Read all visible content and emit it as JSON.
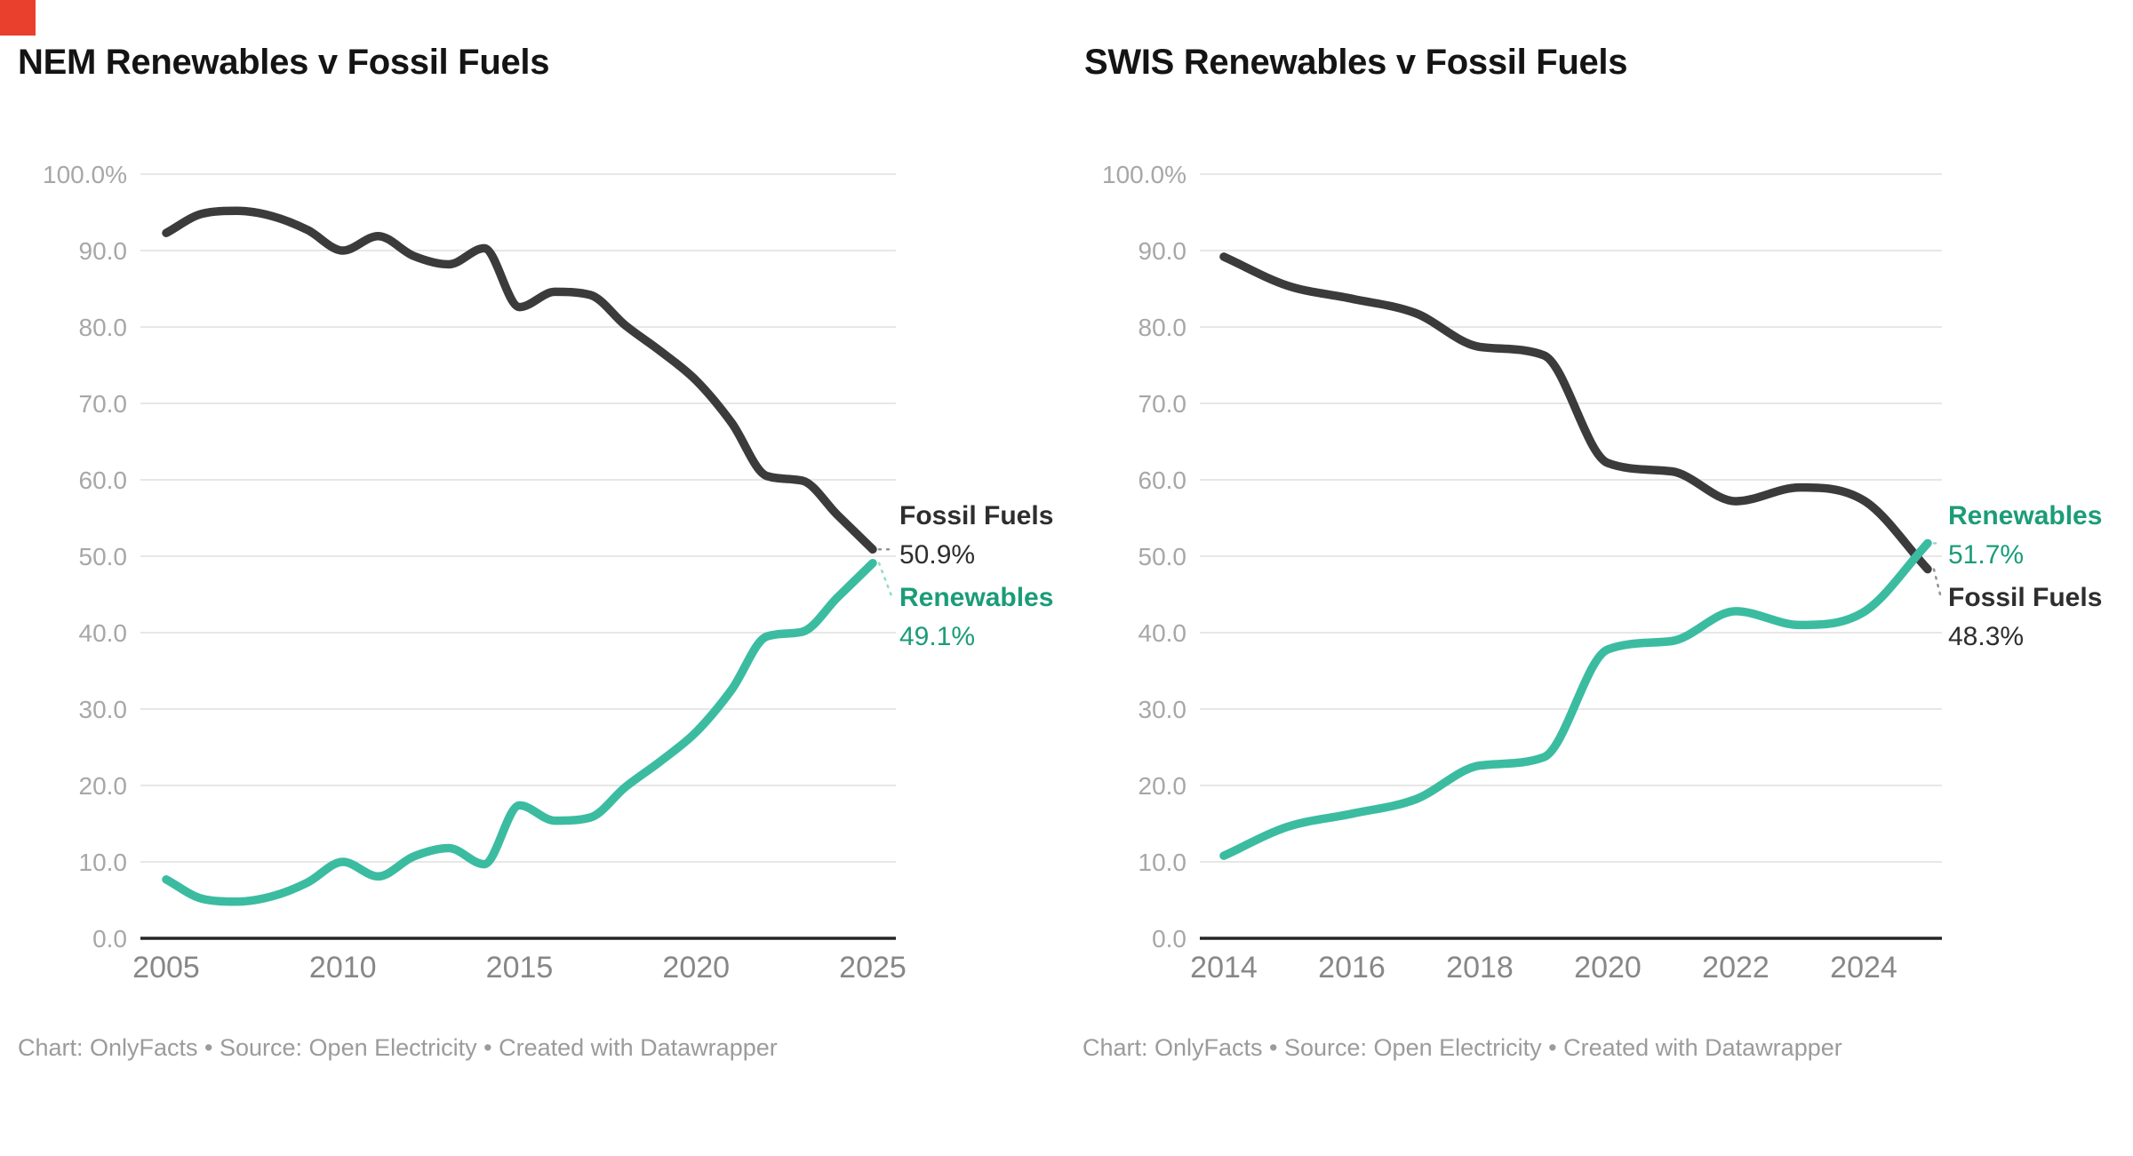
{
  "page": {
    "background": "#ffffff",
    "marker_color": "#e8402d"
  },
  "styles": {
    "grid_color": "#e7e7e7",
    "axis_color": "#262626",
    "y_label_color": "#a7a7a7",
    "x_label_color": "#878787",
    "title_color": "#141414",
    "footer_color": "#9b9b9b"
  },
  "chart_data": [
    {
      "type": "line",
      "title": "NEM Renewables v Fossil Fuels",
      "footer": "Chart: OnlyFacts • Source: Open Electricity • Created with Datawrapper",
      "x": [
        2005,
        2006,
        2007,
        2008,
        2009,
        2010,
        2011,
        2012,
        2013,
        2014,
        2015,
        2016,
        2017,
        2018,
        2019,
        2020,
        2021,
        2022,
        2023,
        2024,
        2025
      ],
      "x_ticks": [
        2005,
        2010,
        2015,
        2020,
        2025
      ],
      "y_tick_labels": [
        "100.0%",
        "90.0",
        "80.0",
        "70.0",
        "60.0",
        "50.0",
        "40.0",
        "30.0",
        "20.0",
        "10.0",
        "0.0"
      ],
      "ylim": [
        0,
        100
      ],
      "grid": true,
      "legend_position": "end-labels-right",
      "series": [
        {
          "name": "Fossil Fuels",
          "end_value_label": "50.9%",
          "color": "#3b3b3b",
          "label_color": "#2e2e2e",
          "values": [
            92.3,
            94.8,
            95.2,
            94.5,
            92.7,
            90.0,
            91.9,
            89.3,
            88.2,
            90.3,
            82.6,
            84.6,
            84.2,
            80.2,
            76.8,
            73.0,
            67.5,
            60.5,
            59.9,
            55.4,
            50.9
          ]
        },
        {
          "name": "Renewables",
          "end_value_label": "49.1%",
          "color": "#3bbca0",
          "label_color": "#1b9c78",
          "values": [
            7.7,
            5.2,
            4.8,
            5.5,
            7.3,
            10.0,
            8.1,
            10.7,
            11.8,
            9.7,
            17.4,
            15.4,
            15.8,
            19.8,
            23.2,
            27.0,
            32.5,
            39.5,
            40.1,
            44.6,
            49.1
          ]
        }
      ]
    },
    {
      "type": "line",
      "title": "SWIS Renewables v Fossil Fuels",
      "footer": "Chart: OnlyFacts • Source: Open Electricity • Created with Datawrapper",
      "x": [
        2014,
        2015,
        2016,
        2017,
        2018,
        2019,
        2020,
        2021,
        2022,
        2023,
        2024,
        2025
      ],
      "x_ticks": [
        2014,
        2016,
        2018,
        2020,
        2022,
        2024
      ],
      "y_tick_labels": [
        "100.0%",
        "90.0",
        "80.0",
        "70.0",
        "60.0",
        "50.0",
        "40.0",
        "30.0",
        "20.0",
        "10.0",
        "0.0"
      ],
      "ylim": [
        0,
        100
      ],
      "grid": true,
      "legend_position": "end-labels-right",
      "series": [
        {
          "name": "Fossil Fuels",
          "end_value_label": "48.3%",
          "color": "#3b3b3b",
          "label_color": "#2e2e2e",
          "values": [
            89.2,
            85.4,
            83.7,
            81.8,
            77.4,
            76.3,
            62.2,
            61.1,
            57.2,
            59.0,
            57.3,
            48.3
          ]
        },
        {
          "name": "Renewables",
          "end_value_label": "51.7%",
          "color": "#3bbca0",
          "label_color": "#1b9c78",
          "values": [
            10.8,
            14.6,
            16.3,
            18.2,
            22.6,
            23.7,
            37.8,
            38.9,
            42.8,
            41.0,
            42.7,
            51.7
          ]
        }
      ]
    }
  ]
}
